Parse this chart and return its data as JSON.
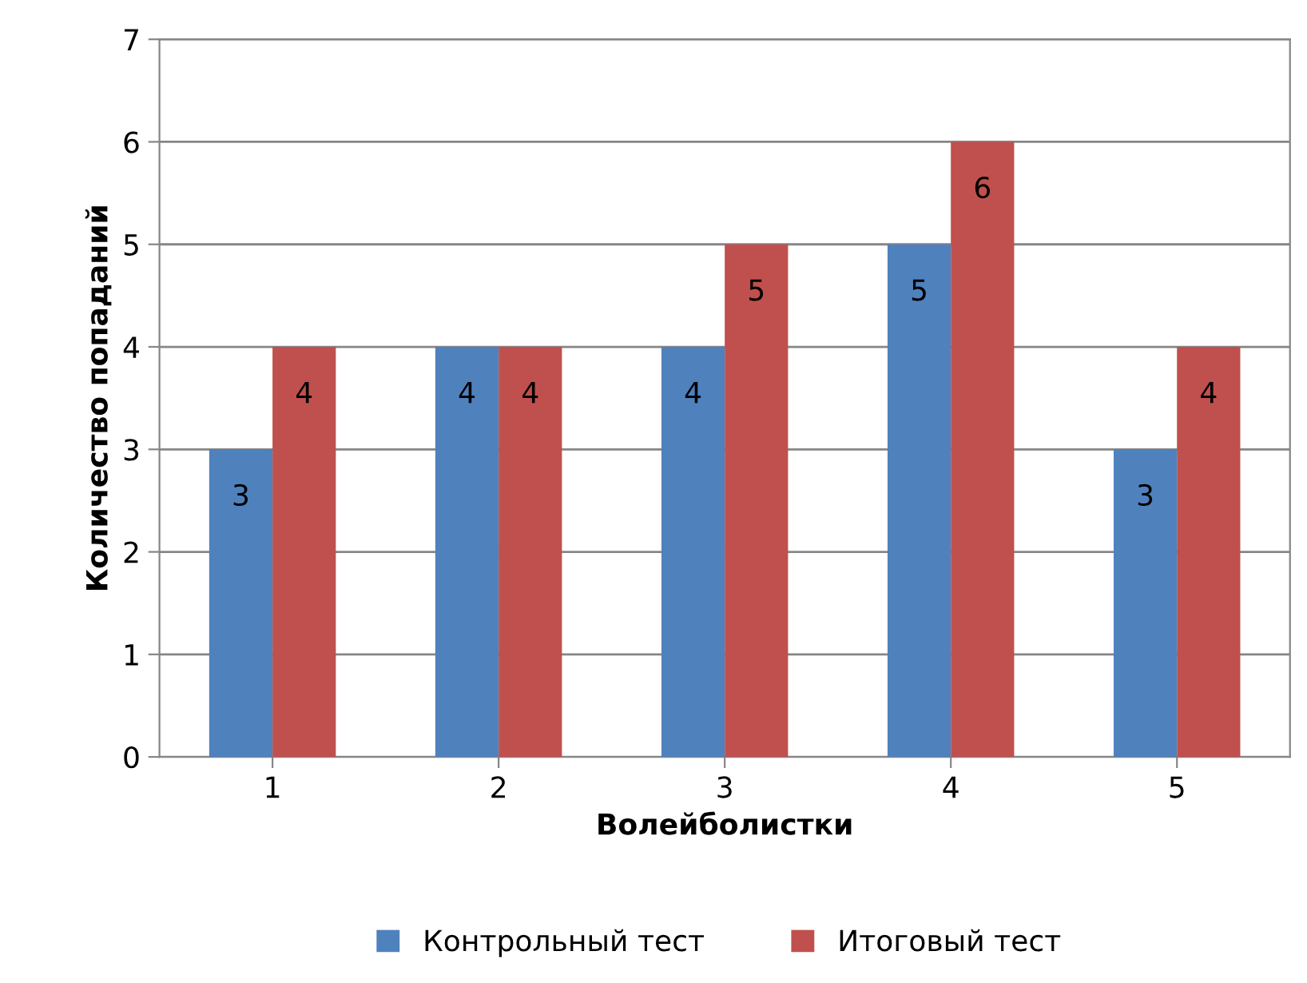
{
  "chart_data": {
    "type": "bar",
    "xlabel": "Волейболистки",
    "ylabel": "Количество попаданий",
    "categories": [
      "1",
      "2",
      "3",
      "4",
      "5"
    ],
    "series": [
      {
        "name": "Контрольный тест",
        "color": "#4f81bd",
        "values": [
          3,
          4,
          4,
          5,
          3
        ]
      },
      {
        "name": "Итоговый тест",
        "color": "#c0504d",
        "values": [
          4,
          4,
          5,
          6,
          4
        ]
      }
    ],
    "ylim": [
      0,
      7
    ],
    "yticks": [
      0,
      1,
      2,
      3,
      4,
      5,
      6,
      7
    ],
    "grid": "y",
    "legend": "bottom",
    "data_labels": true
  }
}
